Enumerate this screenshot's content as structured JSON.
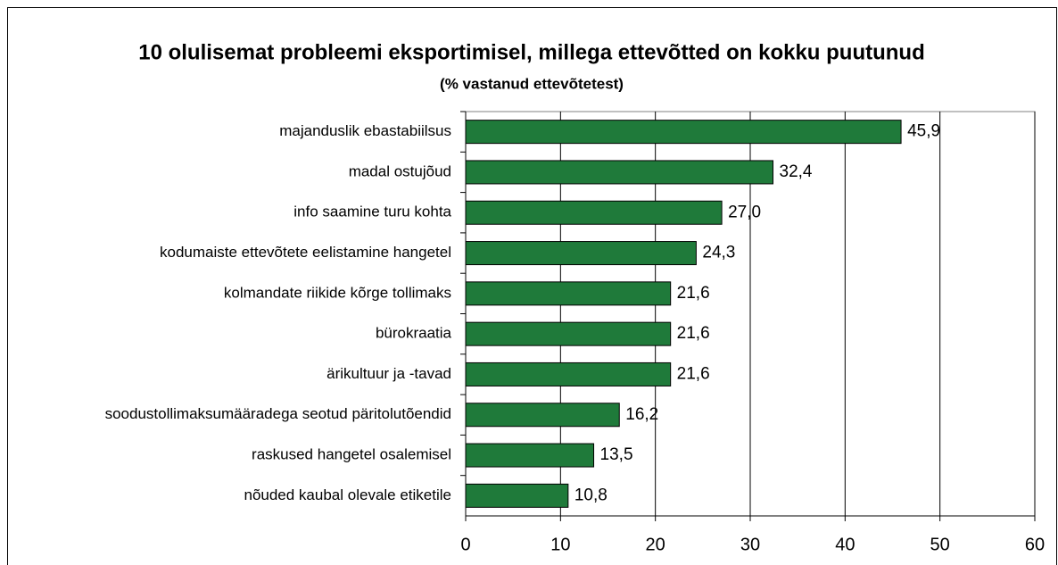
{
  "chart_data": {
    "type": "hbar",
    "title": "10 olulisemat probleemi eksportimisel, millega ettevõtted on kokku puutunud",
    "subtitle": "(% vastanud ettevõtetest)",
    "categories": [
      "majanduslik ebastabiilsus",
      "madal ostujõud",
      "info saamine turu kohta",
      "kodumaiste ettevõtete eelistamine hangetel",
      "kolmandate riikide kõrge tollimaks",
      "bürokraatia",
      "ärikultuur ja -tavad",
      "soodustollimaksumääradega seotud päritolutõendid",
      "raskused hangetel osalemisel",
      "nõuded kaubal olevale etiketile"
    ],
    "values": [
      45.9,
      32.4,
      27.0,
      24.3,
      21.6,
      21.6,
      21.6,
      16.2,
      13.5,
      10.8
    ],
    "value_labels": [
      "45,9",
      "32,4",
      "27,0",
      "24,3",
      "21,6",
      "21,6",
      "21,6",
      "16,2",
      "13,5",
      "10,8"
    ],
    "color": "#1f7a3a",
    "xlim": [
      0,
      60
    ],
    "xticks": [
      0,
      10,
      20,
      30,
      40,
      50,
      60
    ],
    "grid": true
  }
}
